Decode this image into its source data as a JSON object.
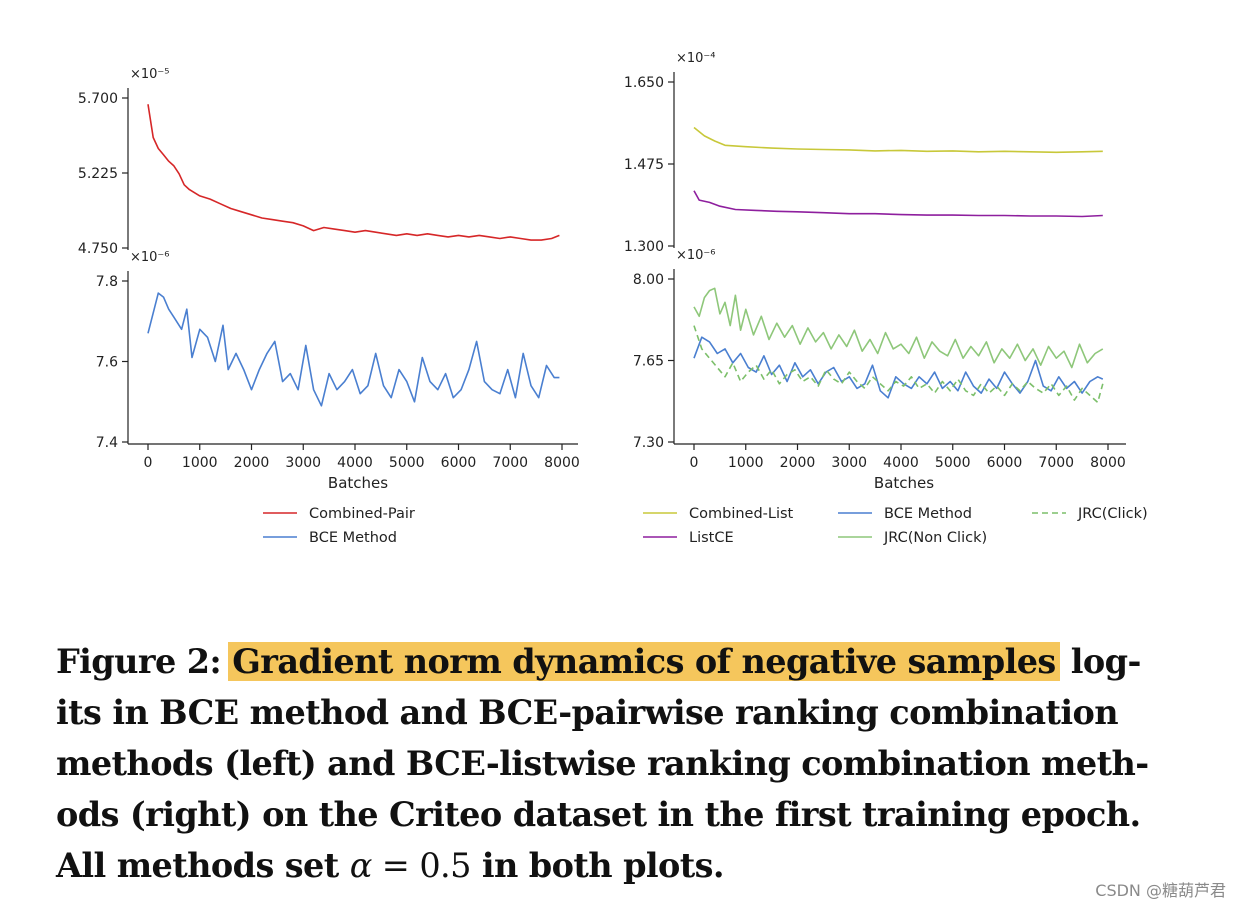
{
  "chart_data": [
    {
      "type": "line",
      "panel": "left-top",
      "multiplier": "×10⁻⁵",
      "xlim": [
        0,
        8000
      ],
      "ylim": [
        4.75,
        5.7
      ],
      "yticks": [
        "5.700",
        "5.225",
        "4.750"
      ],
      "series": [
        {
          "name": "Combined-Pair",
          "color": "#d62728",
          "x": [
            0,
            100,
            200,
            300,
            400,
            500,
            600,
            700,
            800,
            1000,
            1200,
            1400,
            1600,
            1800,
            2000,
            2200,
            2400,
            2600,
            2800,
            3000,
            3200,
            3400,
            3600,
            3800,
            4000,
            4200,
            4400,
            4600,
            4800,
            5000,
            5200,
            5400,
            5600,
            5800,
            6000,
            6200,
            6400,
            6600,
            6800,
            7000,
            7200,
            7400,
            7600,
            7800,
            7950
          ],
          "y": [
            5.66,
            5.45,
            5.38,
            5.34,
            5.3,
            5.27,
            5.22,
            5.15,
            5.12,
            5.08,
            5.06,
            5.03,
            5.0,
            4.98,
            4.96,
            4.94,
            4.93,
            4.92,
            4.91,
            4.89,
            4.86,
            4.88,
            4.87,
            4.86,
            4.85,
            4.86,
            4.85,
            4.84,
            4.83,
            4.84,
            4.83,
            4.84,
            4.83,
            4.82,
            4.83,
            4.82,
            4.83,
            4.82,
            4.81,
            4.82,
            4.81,
            4.8,
            4.8,
            4.81,
            4.83
          ]
        }
      ]
    },
    {
      "type": "line",
      "panel": "left-bottom",
      "multiplier": "×10⁻⁶",
      "xlim": [
        0,
        8000
      ],
      "ylim": [
        7.4,
        7.8
      ],
      "yticks": [
        "7.8",
        "7.6",
        "7.4"
      ],
      "xticks": [
        "0",
        "1000",
        "2000",
        "3000",
        "4000",
        "5000",
        "6000",
        "7000",
        "8000"
      ],
      "xlabel": "Batches",
      "series": [
        {
          "name": "BCE Method",
          "color": "#4a7fd0",
          "x": [
            0,
            200,
            300,
            400,
            500,
            650,
            750,
            850,
            1000,
            1150,
            1300,
            1450,
            1550,
            1700,
            1850,
            2000,
            2150,
            2300,
            2450,
            2600,
            2750,
            2900,
            3050,
            3200,
            3350,
            3500,
            3650,
            3800,
            3950,
            4100,
            4250,
            4400,
            4550,
            4700,
            4850,
            5000,
            5150,
            5300,
            5450,
            5600,
            5750,
            5900,
            6050,
            6200,
            6350,
            6500,
            6650,
            6800,
            6950,
            7100,
            7250,
            7400,
            7550,
            7700,
            7850,
            7950
          ],
          "y": [
            7.67,
            7.77,
            7.76,
            7.73,
            7.71,
            7.68,
            7.73,
            7.61,
            7.68,
            7.66,
            7.6,
            7.69,
            7.58,
            7.62,
            7.58,
            7.53,
            7.58,
            7.62,
            7.65,
            7.55,
            7.57,
            7.53,
            7.64,
            7.53,
            7.49,
            7.57,
            7.53,
            7.55,
            7.58,
            7.52,
            7.54,
            7.62,
            7.54,
            7.51,
            7.58,
            7.55,
            7.5,
            7.61,
            7.55,
            7.53,
            7.57,
            7.51,
            7.53,
            7.58,
            7.65,
            7.55,
            7.53,
            7.52,
            7.58,
            7.51,
            7.62,
            7.54,
            7.51,
            7.59,
            7.56,
            7.56
          ]
        }
      ]
    },
    {
      "type": "line",
      "panel": "right-top",
      "multiplier": "×10⁻⁴",
      "xlim": [
        0,
        8000
      ],
      "ylim": [
        1.3,
        1.65
      ],
      "yticks": [
        "1.650",
        "1.475",
        "1.300"
      ],
      "series": [
        {
          "name": "Combined-List",
          "color": "#c8c83a",
          "x": [
            0,
            200,
            400,
            600,
            1000,
            1500,
            2000,
            2500,
            3000,
            3500,
            4000,
            4500,
            5000,
            5500,
            6000,
            6500,
            7000,
            7500,
            7900
          ],
          "y": [
            1.553,
            1.535,
            1.524,
            1.515,
            1.512,
            1.509,
            1.507,
            1.506,
            1.505,
            1.503,
            1.504,
            1.502,
            1.503,
            1.501,
            1.502,
            1.501,
            1.5,
            1.501,
            1.502
          ]
        },
        {
          "name": "ListCE",
          "color": "#8e1f9e",
          "x": [
            0,
            100,
            300,
            500,
            800,
            1200,
            1600,
            2000,
            2500,
            3000,
            3500,
            4000,
            4500,
            5000,
            5500,
            6000,
            6500,
            7000,
            7500,
            7900
          ],
          "y": [
            1.418,
            1.398,
            1.393,
            1.385,
            1.378,
            1.376,
            1.374,
            1.373,
            1.371,
            1.369,
            1.369,
            1.367,
            1.366,
            1.366,
            1.365,
            1.365,
            1.364,
            1.364,
            1.363,
            1.365
          ]
        }
      ]
    },
    {
      "type": "line",
      "panel": "right-bottom",
      "multiplier": "×10⁻⁶",
      "xlim": [
        0,
        8000
      ],
      "ylim": [
        7.3,
        8.0
      ],
      "yticks": [
        "8.00",
        "7.65",
        "7.30"
      ],
      "xticks": [
        "0",
        "1000",
        "2000",
        "3000",
        "4000",
        "5000",
        "6000",
        "7000",
        "8000"
      ],
      "xlabel": "Batches",
      "series": [
        {
          "name": "BCE Method",
          "color": "#4a7fd0",
          "x": [
            0,
            150,
            300,
            450,
            600,
            750,
            900,
            1050,
            1200,
            1350,
            1500,
            1650,
            1800,
            1950,
            2100,
            2250,
            2400,
            2550,
            2700,
            2850,
            3000,
            3150,
            3300,
            3450,
            3600,
            3750,
            3900,
            4050,
            4200,
            4350,
            4500,
            4650,
            4800,
            4950,
            5100,
            5250,
            5400,
            5550,
            5700,
            5850,
            6000,
            6150,
            6300,
            6450,
            6600,
            6750,
            6900,
            7050,
            7200,
            7350,
            7500,
            7650,
            7800,
            7900
          ],
          "y": [
            7.66,
            7.75,
            7.73,
            7.68,
            7.7,
            7.64,
            7.68,
            7.62,
            7.6,
            7.67,
            7.59,
            7.63,
            7.56,
            7.64,
            7.58,
            7.61,
            7.55,
            7.6,
            7.62,
            7.56,
            7.58,
            7.53,
            7.55,
            7.63,
            7.52,
            7.49,
            7.58,
            7.55,
            7.53,
            7.58,
            7.55,
            7.6,
            7.53,
            7.56,
            7.52,
            7.6,
            7.54,
            7.51,
            7.57,
            7.53,
            7.6,
            7.55,
            7.51,
            7.56,
            7.65,
            7.54,
            7.52,
            7.58,
            7.53,
            7.56,
            7.51,
            7.56,
            7.58,
            7.57
          ]
        },
        {
          "name": "JRC(Click)",
          "color": "#7cbf6a",
          "x": [
            0,
            150,
            300,
            450,
            600,
            750,
            900,
            1050,
            1200,
            1350,
            1500,
            1650,
            1800,
            1950,
            2100,
            2250,
            2400,
            2550,
            2700,
            2850,
            3000,
            3150,
            3300,
            3450,
            3600,
            3750,
            3900,
            4050,
            4200,
            4350,
            4500,
            4650,
            4800,
            4950,
            5100,
            5250,
            5400,
            5550,
            5700,
            5850,
            6000,
            6150,
            6300,
            6450,
            6600,
            6750,
            6900,
            7050,
            7200,
            7350,
            7500,
            7650,
            7800,
            7900
          ],
          "y": [
            7.8,
            7.7,
            7.66,
            7.62,
            7.58,
            7.64,
            7.56,
            7.6,
            7.63,
            7.57,
            7.61,
            7.55,
            7.59,
            7.61,
            7.56,
            7.58,
            7.54,
            7.61,
            7.57,
            7.55,
            7.6,
            7.56,
            7.53,
            7.58,
            7.55,
            7.52,
            7.56,
            7.54,
            7.58,
            7.53,
            7.55,
            7.51,
            7.56,
            7.52,
            7.57,
            7.52,
            7.5,
            7.55,
            7.51,
            7.54,
            7.5,
            7.55,
            7.52,
            7.56,
            7.53,
            7.51,
            7.55,
            7.5,
            7.54,
            7.48,
            7.53,
            7.5,
            7.47,
            7.55
          ]
        },
        {
          "name": "JRC(Non Click)",
          "color": "#8ec77a",
          "x": [
            0,
            100,
            200,
            300,
            400,
            500,
            600,
            700,
            800,
            900,
            1000,
            1150,
            1300,
            1450,
            1600,
            1750,
            1900,
            2050,
            2200,
            2350,
            2500,
            2650,
            2800,
            2950,
            3100,
            3250,
            3400,
            3550,
            3700,
            3850,
            4000,
            4150,
            4300,
            4450,
            4600,
            4750,
            4900,
            5050,
            5200,
            5350,
            5500,
            5650,
            5800,
            5950,
            6100,
            6250,
            6400,
            6550,
            6700,
            6850,
            7000,
            7150,
            7300,
            7450,
            7600,
            7750,
            7900
          ],
          "y": [
            7.88,
            7.84,
            7.92,
            7.95,
            7.96,
            7.85,
            7.9,
            7.8,
            7.93,
            7.78,
            7.87,
            7.76,
            7.84,
            7.74,
            7.81,
            7.75,
            7.8,
            7.72,
            7.79,
            7.73,
            7.77,
            7.7,
            7.76,
            7.71,
            7.78,
            7.69,
            7.74,
            7.68,
            7.77,
            7.7,
            7.72,
            7.68,
            7.75,
            7.66,
            7.73,
            7.69,
            7.67,
            7.74,
            7.66,
            7.71,
            7.67,
            7.73,
            7.64,
            7.7,
            7.66,
            7.72,
            7.65,
            7.7,
            7.63,
            7.71,
            7.66,
            7.69,
            7.62,
            7.72,
            7.64,
            7.68,
            7.7
          ]
        }
      ]
    }
  ],
  "legends": {
    "left": [
      {
        "label": "Combined-Pair",
        "color": "#d62728",
        "dash": false
      },
      {
        "label": "BCE Method",
        "color": "#4a7fd0",
        "dash": false
      }
    ],
    "right": [
      {
        "label": "Combined-List",
        "color": "#c8c83a",
        "dash": false
      },
      {
        "label": "BCE Method",
        "color": "#4a7fd0",
        "dash": false
      },
      {
        "label": "JRC(Click)",
        "color": "#7cbf6a",
        "dash": true
      },
      {
        "label": "ListCE",
        "color": "#8e1f9e",
        "dash": false
      },
      {
        "label": "JRC(Non Click)",
        "color": "#8ec77a",
        "dash": false
      }
    ]
  },
  "caption": {
    "prefix": "Figure 2: ",
    "highlight": "Gradient norm dynamics of negative samples",
    "rest1": " log-",
    "line2": "its in BCE method and BCE-pairwise ranking combination",
    "line3": "methods (left) and BCE-listwise ranking combination meth-",
    "line4": "ods (right) on the Criteo dataset in the first training epoch.",
    "line5_a": "All methods set ",
    "alpha": "α",
    "line5_b": " = ",
    "alpha_value": "0.5",
    "line5_c": " in both plots."
  },
  "watermark": "CSDN @糖葫芦君"
}
